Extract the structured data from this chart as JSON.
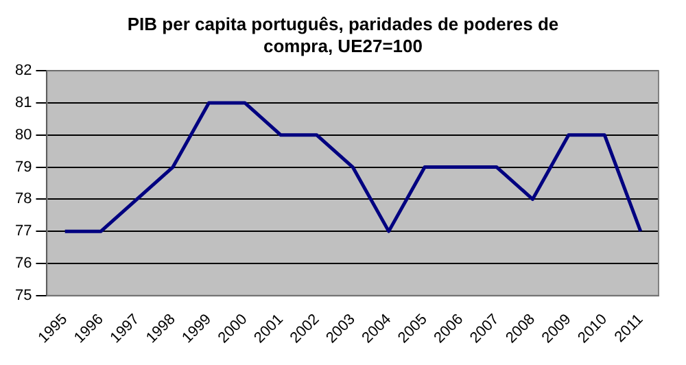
{
  "chart_data": {
    "type": "line",
    "title": "PIB per capita português, paridades de poderes de compra, UE27=100",
    "categories": [
      "1995",
      "1996",
      "1997",
      "1998",
      "1999",
      "2000",
      "2001",
      "2002",
      "2003",
      "2004",
      "2005",
      "2006",
      "2007",
      "2008",
      "2009",
      "2010",
      "2011"
    ],
    "series": [
      {
        "color": "#000080",
        "values": [
          77,
          77,
          78,
          79,
          81,
          81,
          80,
          80,
          79,
          77,
          79,
          79,
          79,
          78,
          80,
          80,
          77
        ]
      }
    ],
    "ylim": [
      75,
      82
    ],
    "yticks": [
      75,
      76,
      77,
      78,
      79,
      80,
      81,
      82
    ],
    "grid": "y",
    "legend": false,
    "marker": "none",
    "line_style": "solid"
  }
}
